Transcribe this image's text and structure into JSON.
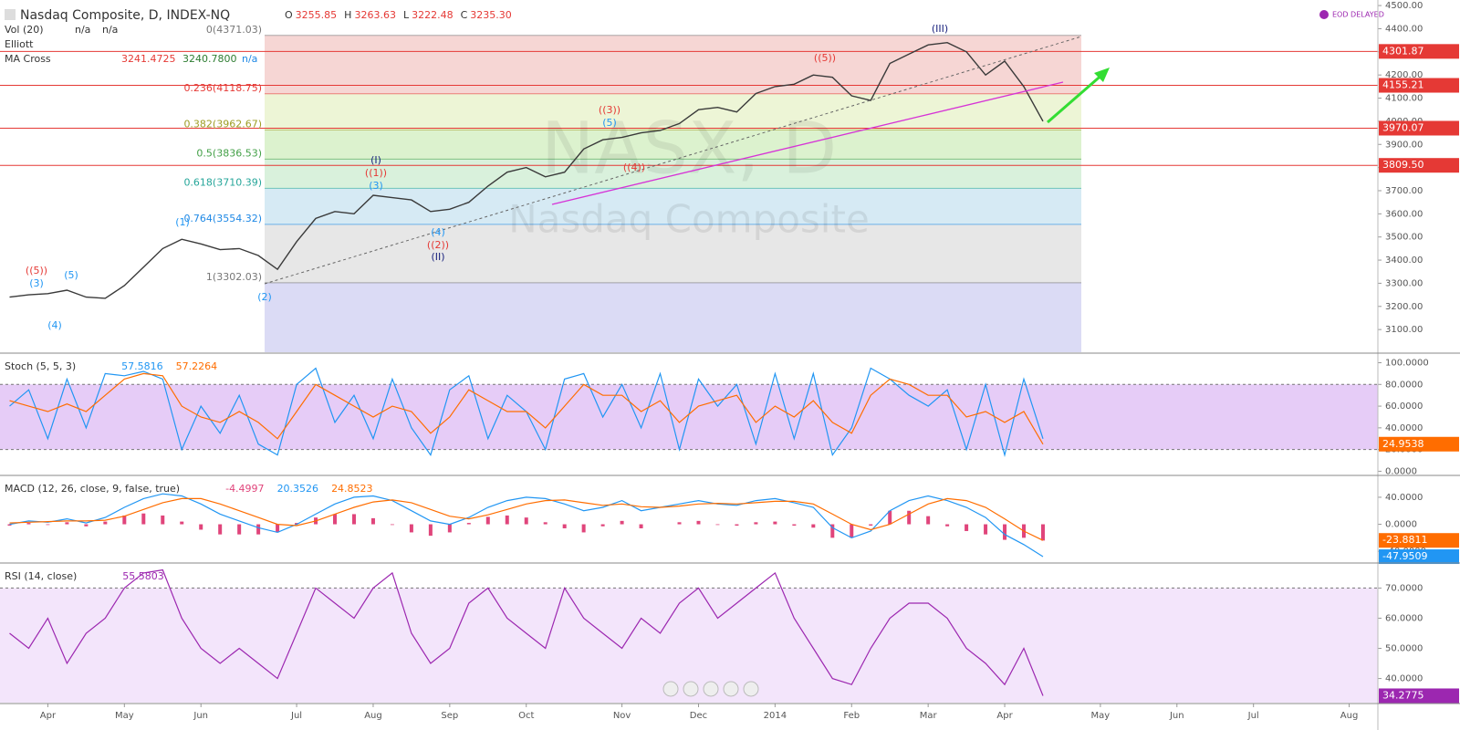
{
  "chart_data": [
    {
      "type": "line",
      "title": "Nasdaq Composite, D, INDEX-NQ",
      "ohlc": [
        {
          "name": "O",
          "value": 3255.85
        },
        {
          "name": "H",
          "value": 3263.63
        },
        {
          "name": "L",
          "value": 3222.48
        },
        {
          "name": "C",
          "value": {
            "value": 3235.3,
            "label": "3235.30"
          }
        }
      ],
      "vol": {
        "name": "Vol (20)",
        "values": [
          "n/a",
          "n/a"
        ]
      },
      "elliott": "Elliott",
      "ma_cross": {
        "name": "MA Cross",
        "values": [
          3241.4725,
          {
            "value": 3240.78,
            "label": "3240.7800"
          }
        ],
        "note": "n/a"
      },
      "status": "EOD DELAYED",
      "watermark": [
        "NASX, D",
        "Nasdaq Composite"
      ],
      "categories": [
        null,
        null,
        "Apr",
        null,
        null,
        null,
        "May",
        null,
        null,
        null,
        "Jun",
        null,
        null,
        null,
        null,
        "Jul",
        null,
        null,
        null,
        "Aug",
        null,
        null,
        null,
        "Sep",
        null,
        null,
        null,
        "Oct",
        null,
        null,
        null,
        null,
        "Nov",
        null,
        null,
        null,
        "Dec",
        null,
        null,
        null,
        "2014",
        null,
        null,
        null,
        "Feb",
        null,
        null,
        null,
        "Mar",
        null,
        null,
        null,
        "Apr",
        null,
        null,
        null,
        null,
        "May",
        null,
        null,
        null,
        "Jun",
        null,
        null,
        null,
        "Jul",
        null,
        null,
        null,
        null,
        "Aug",
        null
      ],
      "values": [
        3240,
        3250,
        3255,
        3270,
        3240,
        3235,
        3290,
        3370,
        3450,
        3490,
        3470,
        3445,
        3450,
        3420,
        3360,
        3480,
        3580,
        3610,
        3600,
        3680,
        3670,
        3660,
        3610,
        3620,
        3650,
        3720,
        3780,
        3800,
        3760,
        3780,
        3880,
        3920,
        3930,
        3950,
        3960,
        3990,
        4050,
        4060,
        4040,
        4120,
        4150,
        4160,
        4200,
        4190,
        4110,
        4090,
        4250,
        4290,
        4330,
        4340,
        4300,
        4200,
        4260,
        4150,
        4000,
        null,
        null,
        null,
        null,
        null,
        null,
        null,
        null,
        null,
        null,
        null,
        null,
        null,
        null,
        null,
        null,
        null
      ],
      "color": "#3a3a3a",
      "ylim": [
        3002,
        4524
      ],
      "yticks": [
        {
          "value": 3100,
          "label": "3100.00"
        },
        {
          "value": 3200,
          "label": "3200.00"
        },
        {
          "value": 3300,
          "label": "3300.00"
        },
        {
          "value": 3400,
          "label": "3400.00"
        },
        {
          "value": 3500,
          "label": "3500.00"
        },
        {
          "value": 3600,
          "label": "3600.00"
        },
        {
          "value": 3700,
          "label": "3700.00"
        },
        {
          "value": 3800,
          "label": "3800.00"
        },
        {
          "value": 3900,
          "label": "3900.00"
        },
        {
          "value": 4000,
          "label": "4000.00"
        },
        {
          "value": 4100,
          "label": "4100.00"
        },
        {
          "value": 4200,
          "label": "4200.00"
        },
        {
          "value": 4300,
          "label": "4300.00"
        },
        {
          "value": 4400,
          "label": "4400.00"
        },
        {
          "value": 4500,
          "label": "4500.00"
        }
      ],
      "fib_levels": [
        {
          "label": "0(4371.03)",
          "value": 4371.03,
          "fill": "#f5cfcc",
          "color": "#777777"
        },
        {
          "label": "0.236(4118.75)",
          "value": 4118.75,
          "fill": "#eaf3cf",
          "color": "#e53935"
        },
        {
          "label": "0.382(3962.67)",
          "value": 3962.67,
          "fill": "#d6f0c6",
          "color": "#9e9d24"
        },
        {
          "label": "0.5(3836.53)",
          "value": 3836.53,
          "fill": "#d2efd6",
          "color": "#43a047"
        },
        {
          "label": "0.618(3710.39)",
          "value": 3710.39,
          "fill": "#cfe6f2",
          "color": "#26a69a"
        },
        {
          "label": "0.764(3554.32)",
          "value": 3554.32,
          "fill": "#e3e3e3",
          "color": "#1e88e5"
        },
        {
          "label": "1(3302.03)",
          "value": 3302.03,
          "fill": "#d5d5f3",
          "color": "#777777"
        }
      ],
      "hlines": [
        4301.87,
        4155.21,
        3970.07,
        {
          "value": 3809.5,
          "label": "3809.50"
        }
      ],
      "hline_color": "#e53935",
      "annotations": [
        {
          "text": "((5))",
          "color": "#e53935"
        },
        {
          "text": "(3)",
          "color": "#2196f3"
        },
        {
          "text": "(4)",
          "color": "#2196f3"
        },
        {
          "text": "(5)",
          "color": "#2196f3"
        },
        {
          "text": "(1)",
          "color": "#2196f3"
        },
        {
          "text": "(I)",
          "color": "#1a237e"
        },
        {
          "text": "((1))",
          "color": "#e53935"
        },
        {
          "text": "(3)",
          "color": "#2196f3"
        },
        {
          "text": "(4)",
          "color": "#2196f3"
        },
        {
          "text": "((2))",
          "color": "#e53935"
        },
        {
          "text": "(II)",
          "color": "#1a237e"
        },
        {
          "text": "(2)",
          "color": "#2196f3"
        },
        {
          "text": "((3))",
          "color": "#e53935"
        },
        {
          "text": "(5)",
          "color": "#2196f3"
        },
        {
          "text": "((4))",
          "color": "#e53935"
        },
        {
          "text": "((5))",
          "color": "#e53935"
        },
        {
          "text": "(III)",
          "color": "#1a237e"
        }
      ]
    },
    {
      "type": "line",
      "title": "Stoch (5, 5, 3)",
      "ylim": [
        -3,
        108
      ],
      "yticks": [
        {
          "value": 0,
          "label": "0.0000"
        },
        {
          "value": 20,
          "label": "20.0000"
        },
        {
          "value": 40,
          "label": "40.0000"
        },
        {
          "value": 60,
          "label": "60.0000"
        },
        {
          "value": 80,
          "label": "80.0000"
        },
        {
          "value": 100,
          "label": "100.0000"
        }
      ],
      "band": [
        20,
        80
      ],
      "band_color": "#e6ccf7",
      "series": [
        {
          "color": "#2196f3",
          "legend_value": 57.5816,
          "values": [
            60,
            75,
            30,
            85,
            40,
            90,
            88,
            92,
            85,
            20,
            60,
            35,
            70,
            25,
            15,
            80,
            95,
            45,
            70,
            30,
            85,
            40,
            15,
            75,
            88,
            30,
            70,
            55,
            20,
            85,
            90,
            50,
            80,
            40,
            90,
            20,
            85,
            60,
            80,
            25,
            90,
            30,
            90,
            15,
            40,
            95,
            85,
            70,
            60,
            75,
            20,
            80,
            15,
            85,
            30,
            null,
            null,
            null,
            null,
            null,
            null,
            null,
            null,
            null,
            null,
            null,
            null,
            null,
            null,
            null,
            null,
            null
          ]
        },
        {
          "color": "#ff6d00",
          "legend_value": 57.2264,
          "tag": true,
          "values": [
            65,
            60,
            55,
            62,
            55,
            70,
            85,
            90,
            88,
            60,
            50,
            45,
            55,
            45,
            30,
            55,
            80,
            70,
            60,
            50,
            60,
            55,
            35,
            50,
            75,
            65,
            55,
            55,
            40,
            60,
            80,
            70,
            70,
            55,
            65,
            45,
            60,
            65,
            70,
            45,
            60,
            50,
            65,
            45,
            35,
            70,
            85,
            80,
            70,
            70,
            50,
            55,
            45,
            55,
            24.9538,
            null,
            null,
            null,
            null,
            null,
            null,
            null,
            null,
            null,
            null,
            null,
            null,
            null,
            null,
            null,
            null,
            null
          ]
        }
      ]
    },
    {
      "type": "line",
      "title": "MACD (12, 26, close, 9, false, true)",
      "ylim": [
        -56,
        71
      ],
      "yticks": [
        {
          "value": -40,
          "label": "-40.0000"
        },
        {
          "value": 0,
          "label": "0.0000"
        },
        {
          "value": 40,
          "label": "40.0000"
        }
      ],
      "series": [
        {
          "kind": "bar",
          "color": "#e0457b",
          "legend_value": -4.4997,
          "values": [
            -2,
            2,
            -1,
            3,
            -3,
            4,
            13,
            16,
            13,
            4,
            -8,
            -15,
            -15,
            -15,
            -12,
            2,
            10,
            15,
            15,
            9,
            -1,
            -12,
            -17,
            -12,
            2,
            11,
            13,
            10,
            3,
            -6,
            -12,
            -3,
            5,
            -6,
            0,
            3,
            5,
            -1,
            -2,
            3,
            4,
            -2,
            -5,
            -20,
            -20,
            -2,
            20,
            20,
            12,
            -3,
            -10,
            -15,
            -23,
            -20,
            -24.0698,
            null,
            null,
            null,
            null,
            null,
            null,
            null,
            null,
            null,
            null,
            null,
            null,
            null,
            null,
            null,
            null,
            null
          ]
        },
        {
          "kind": "line",
          "color": "#2196f3",
          "legend_value": 20.3526,
          "tag": true,
          "values": [
            0,
            5,
            3,
            8,
            2,
            10,
            25,
            38,
            45,
            42,
            30,
            15,
            5,
            -5,
            -12,
            0,
            15,
            30,
            40,
            42,
            35,
            20,
            5,
            0,
            10,
            25,
            35,
            40,
            38,
            30,
            20,
            25,
            35,
            20,
            25,
            30,
            35,
            30,
            28,
            35,
            38,
            32,
            25,
            -5,
            -20,
            -10,
            20,
            35,
            42,
            35,
            25,
            10,
            -15,
            -30,
            -47.9509,
            null,
            null,
            null,
            null,
            null,
            null,
            null,
            null,
            null,
            null,
            null,
            null,
            null,
            null,
            null,
            null,
            null
          ]
        },
        {
          "kind": "line",
          "color": "#ff6d00",
          "legend_value": 24.8523,
          "tag": true,
          "values": [
            2,
            3,
            4,
            5,
            5,
            6,
            12,
            22,
            32,
            38,
            38,
            30,
            20,
            10,
            0,
            -2,
            5,
            15,
            25,
            33,
            36,
            32,
            22,
            12,
            8,
            14,
            22,
            30,
            35,
            36,
            32,
            28,
            30,
            26,
            25,
            27,
            30,
            31,
            30,
            32,
            34,
            34,
            30,
            15,
            0,
            -8,
            0,
            15,
            30,
            38,
            35,
            25,
            8,
            -10,
            -23.8811,
            null,
            null,
            null,
            null,
            null,
            null,
            null,
            null,
            null,
            null,
            null,
            null,
            null,
            null,
            null,
            null,
            null
          ]
        }
      ]
    },
    {
      "type": "line",
      "title": "RSI (14, close)",
      "ylim": [
        32,
        78
      ],
      "yticks": [
        {
          "value": 40,
          "label": "40.0000"
        },
        {
          "value": 50,
          "label": "50.0000"
        },
        {
          "value": 60,
          "label": "60.0000"
        },
        {
          "value": 70,
          "label": "70.0000"
        }
      ],
      "band": [
        30,
        70
      ],
      "band_color": "#f3e5fb",
      "series": [
        {
          "color": "#9c27b0",
          "legend_value": 55.5803,
          "tag": true,
          "values": [
            55,
            50,
            60,
            45,
            55,
            60,
            70,
            75,
            76,
            60,
            50,
            45,
            50,
            45,
            40,
            55,
            70,
            65,
            60,
            70,
            75,
            55,
            45,
            50,
            65,
            70,
            60,
            55,
            50,
            70,
            60,
            55,
            50,
            60,
            55,
            65,
            70,
            60,
            65,
            70,
            75,
            60,
            50,
            40,
            38,
            50,
            60,
            65,
            65,
            60,
            50,
            45,
            38,
            50,
            34.2775,
            null,
            null,
            null,
            null,
            null,
            null,
            null,
            null,
            null,
            null,
            null,
            null,
            null,
            null,
            null,
            null,
            null
          ]
        }
      ]
    }
  ]
}
